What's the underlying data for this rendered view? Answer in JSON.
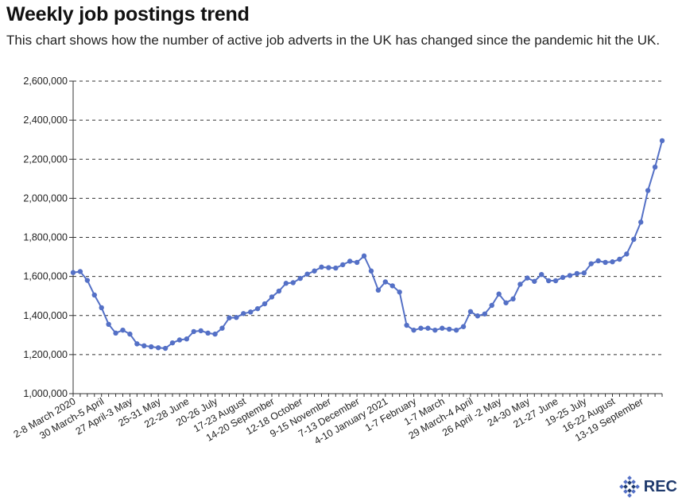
{
  "chart_data": {
    "type": "line",
    "title": "Weekly job postings trend",
    "subtitle": "This chart shows how the number of active job adverts in the UK has changed since the pandemic hit the UK.",
    "xlabel": "",
    "ylabel": "",
    "ylim": [
      1000000,
      2600000
    ],
    "yticks": [
      "1,000,000",
      "1,200,000",
      "1,400,000",
      "1,600,000",
      "1,800,000",
      "2,000,000",
      "2,200,000",
      "2,400,000",
      "2,600,000"
    ],
    "ytick_values": [
      1000000,
      1200000,
      1400000,
      1600000,
      1800000,
      2000000,
      2200000,
      2400000,
      2600000
    ],
    "grid": true,
    "x_labels": [
      {
        "index": 0,
        "label": "2-8 March 2020"
      },
      {
        "index": 4,
        "label": "30 March-5 April"
      },
      {
        "index": 8,
        "label": "27 April-3 May"
      },
      {
        "index": 12,
        "label": "25-31 May"
      },
      {
        "index": 16,
        "label": "22-28 June"
      },
      {
        "index": 20,
        "label": "20-26 July"
      },
      {
        "index": 24,
        "label": "17-23 August"
      },
      {
        "index": 28,
        "label": "14-20 September"
      },
      {
        "index": 32,
        "label": "12-18 October"
      },
      {
        "index": 36,
        "label": "9-15 November"
      },
      {
        "index": 40,
        "label": "7-13 December"
      },
      {
        "index": 44,
        "label": "4-10 January 2021"
      },
      {
        "index": 48,
        "label": "1-7 February"
      },
      {
        "index": 52,
        "label": "1-7 March"
      },
      {
        "index": 56,
        "label": "29 March-4 April"
      },
      {
        "index": 60,
        "label": "26 April -2 May"
      },
      {
        "index": 64,
        "label": "24-30 May"
      },
      {
        "index": 68,
        "label": "21-27 June"
      },
      {
        "index": 72,
        "label": "19-25 July"
      },
      {
        "index": 76,
        "label": "16-22 August"
      },
      {
        "index": 80,
        "label": "13-19 September"
      }
    ],
    "series": [
      {
        "name": "",
        "color": "#5470c6",
        "values": [
          1620000,
          1625000,
          1580000,
          1505000,
          1440000,
          1355000,
          1310000,
          1325000,
          1305000,
          1255000,
          1245000,
          1240000,
          1235000,
          1232000,
          1260000,
          1275000,
          1280000,
          1318000,
          1322000,
          1310000,
          1305000,
          1335000,
          1388000,
          1390000,
          1410000,
          1418000,
          1435000,
          1460000,
          1495000,
          1525000,
          1565000,
          1568000,
          1590000,
          1612000,
          1628000,
          1648000,
          1645000,
          1643000,
          1660000,
          1678000,
          1672000,
          1705000,
          1628000,
          1530000,
          1572000,
          1552000,
          1520000,
          1350000,
          1325000,
          1335000,
          1335000,
          1325000,
          1335000,
          1330000,
          1325000,
          1343000,
          1420000,
          1398000,
          1408000,
          1452000,
          1510000,
          1465000,
          1485000,
          1560000,
          1592000,
          1575000,
          1610000,
          1578000,
          1578000,
          1595000,
          1605000,
          1615000,
          1618000,
          1665000,
          1680000,
          1672000,
          1675000,
          1688000,
          1715000,
          1790000,
          1878000,
          2040000,
          2160000,
          2295000
        ]
      }
    ]
  },
  "logo": {
    "text": "REC"
  }
}
